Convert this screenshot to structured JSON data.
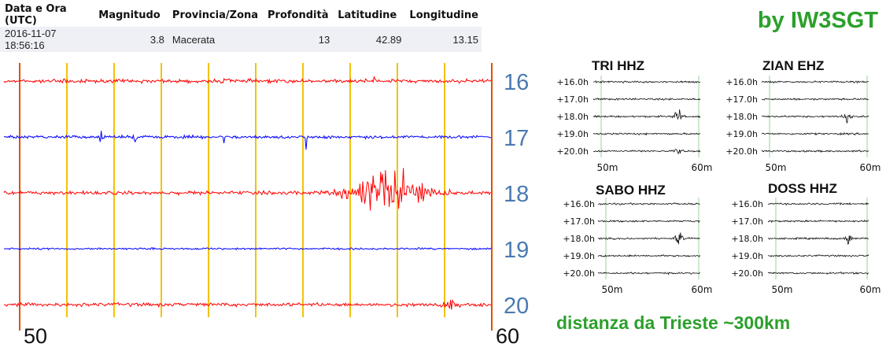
{
  "brand": "by IW3SGT",
  "distance_note": "distanza da Trieste ~300km",
  "colors": {
    "green": "#2ca02c",
    "red": "#ff0000",
    "blue": "#0000ff",
    "hour_label": "#4a7ab0",
    "yellow": "#f2c20a",
    "edge": "#e05000"
  },
  "quake_table": {
    "headers": [
      "Data e Ora (UTC)",
      "Magnitudo",
      "Provincia/Zona",
      "Profondità",
      "Latitudine",
      "Longitudine"
    ],
    "row": [
      "2016-11-07 18:56:16",
      "3.8",
      "Macerata",
      "13",
      "42.89",
      "13.15"
    ]
  },
  "chart_data": [
    {
      "type": "line",
      "title": "",
      "x_start_label": "50",
      "x_end_label": "60",
      "x_range_minutes": [
        50,
        60
      ],
      "traces": [
        {
          "hour_label": "16",
          "color": "red",
          "base_noise": 0.35,
          "events": [
            {
              "minute": 51.2,
              "amplitude": 0.5,
              "duration": 0.3
            },
            {
              "minute": 54.6,
              "amplitude": 0.6,
              "duration": 0.15
            },
            {
              "minute": 57.6,
              "amplitude": 1.6,
              "duration": 0.05
            }
          ]
        },
        {
          "hour_label": "17",
          "color": "blue",
          "base_noise": 0.3,
          "events": [
            {
              "minute": 52.0,
              "amplitude": 1.8,
              "duration": 0.05
            },
            {
              "minute": 52.7,
              "amplitude": 2.2,
              "duration": 0.05
            },
            {
              "minute": 54.5,
              "amplitude": 1.6,
              "duration": 0.04
            },
            {
              "minute": 56.2,
              "amplitude": 2.4,
              "duration": 0.04
            }
          ]
        },
        {
          "hour_label": "18",
          "color": "red",
          "base_noise": 0.35,
          "events": [
            {
              "minute": 57.9,
              "amplitude": 4.5,
              "duration": 1.4
            }
          ]
        },
        {
          "hour_label": "19",
          "color": "blue",
          "base_noise": 0.18,
          "events": []
        },
        {
          "hour_label": "20",
          "color": "red",
          "base_noise": 0.35,
          "events": [
            {
              "minute": 59.1,
              "amplitude": 0.9,
              "duration": 0.3
            }
          ]
        }
      ],
      "grid": "vertical, 1 per minute"
    },
    {
      "type": "line",
      "station": "TRI HHZ",
      "rows": [
        "+16.0h",
        "+17.0h",
        "+18.0h",
        "+19.0h",
        "+20.0h"
      ],
      "x_labels": [
        "50m",
        "60m"
      ],
      "events": [
        {
          "row": 2,
          "minute": 57.9,
          "amplitude": 1.0
        },
        {
          "row": 4,
          "minute": 58.0,
          "amplitude": 0.45
        }
      ]
    },
    {
      "type": "line",
      "station": "ZIAN EHZ",
      "rows": [
        "+16.0h",
        "+17.0h",
        "+18.0h",
        "+19.0h",
        "+20.0h"
      ],
      "x_labels": [
        "50m",
        "60m"
      ],
      "events": [
        {
          "row": 2,
          "minute": 58.0,
          "amplitude": 0.8
        }
      ]
    },
    {
      "type": "line",
      "station": "SABO HHZ",
      "rows": [
        "+16.0h",
        "+17.0h",
        "+18.0h",
        "+19.0h",
        "+20.0h"
      ],
      "x_labels": [
        "50m",
        "60m"
      ],
      "events": [
        {
          "row": 2,
          "minute": 57.9,
          "amplitude": 1.0
        }
      ]
    },
    {
      "type": "line",
      "station": "DOSS HHZ",
      "rows": [
        "+16.0h",
        "+17.0h",
        "+18.0h",
        "+19.0h",
        "+20.0h"
      ],
      "x_labels": [
        "50m",
        "60m"
      ],
      "events": [
        {
          "row": 2,
          "minute": 58.0,
          "amplitude": 0.8
        }
      ]
    }
  ]
}
